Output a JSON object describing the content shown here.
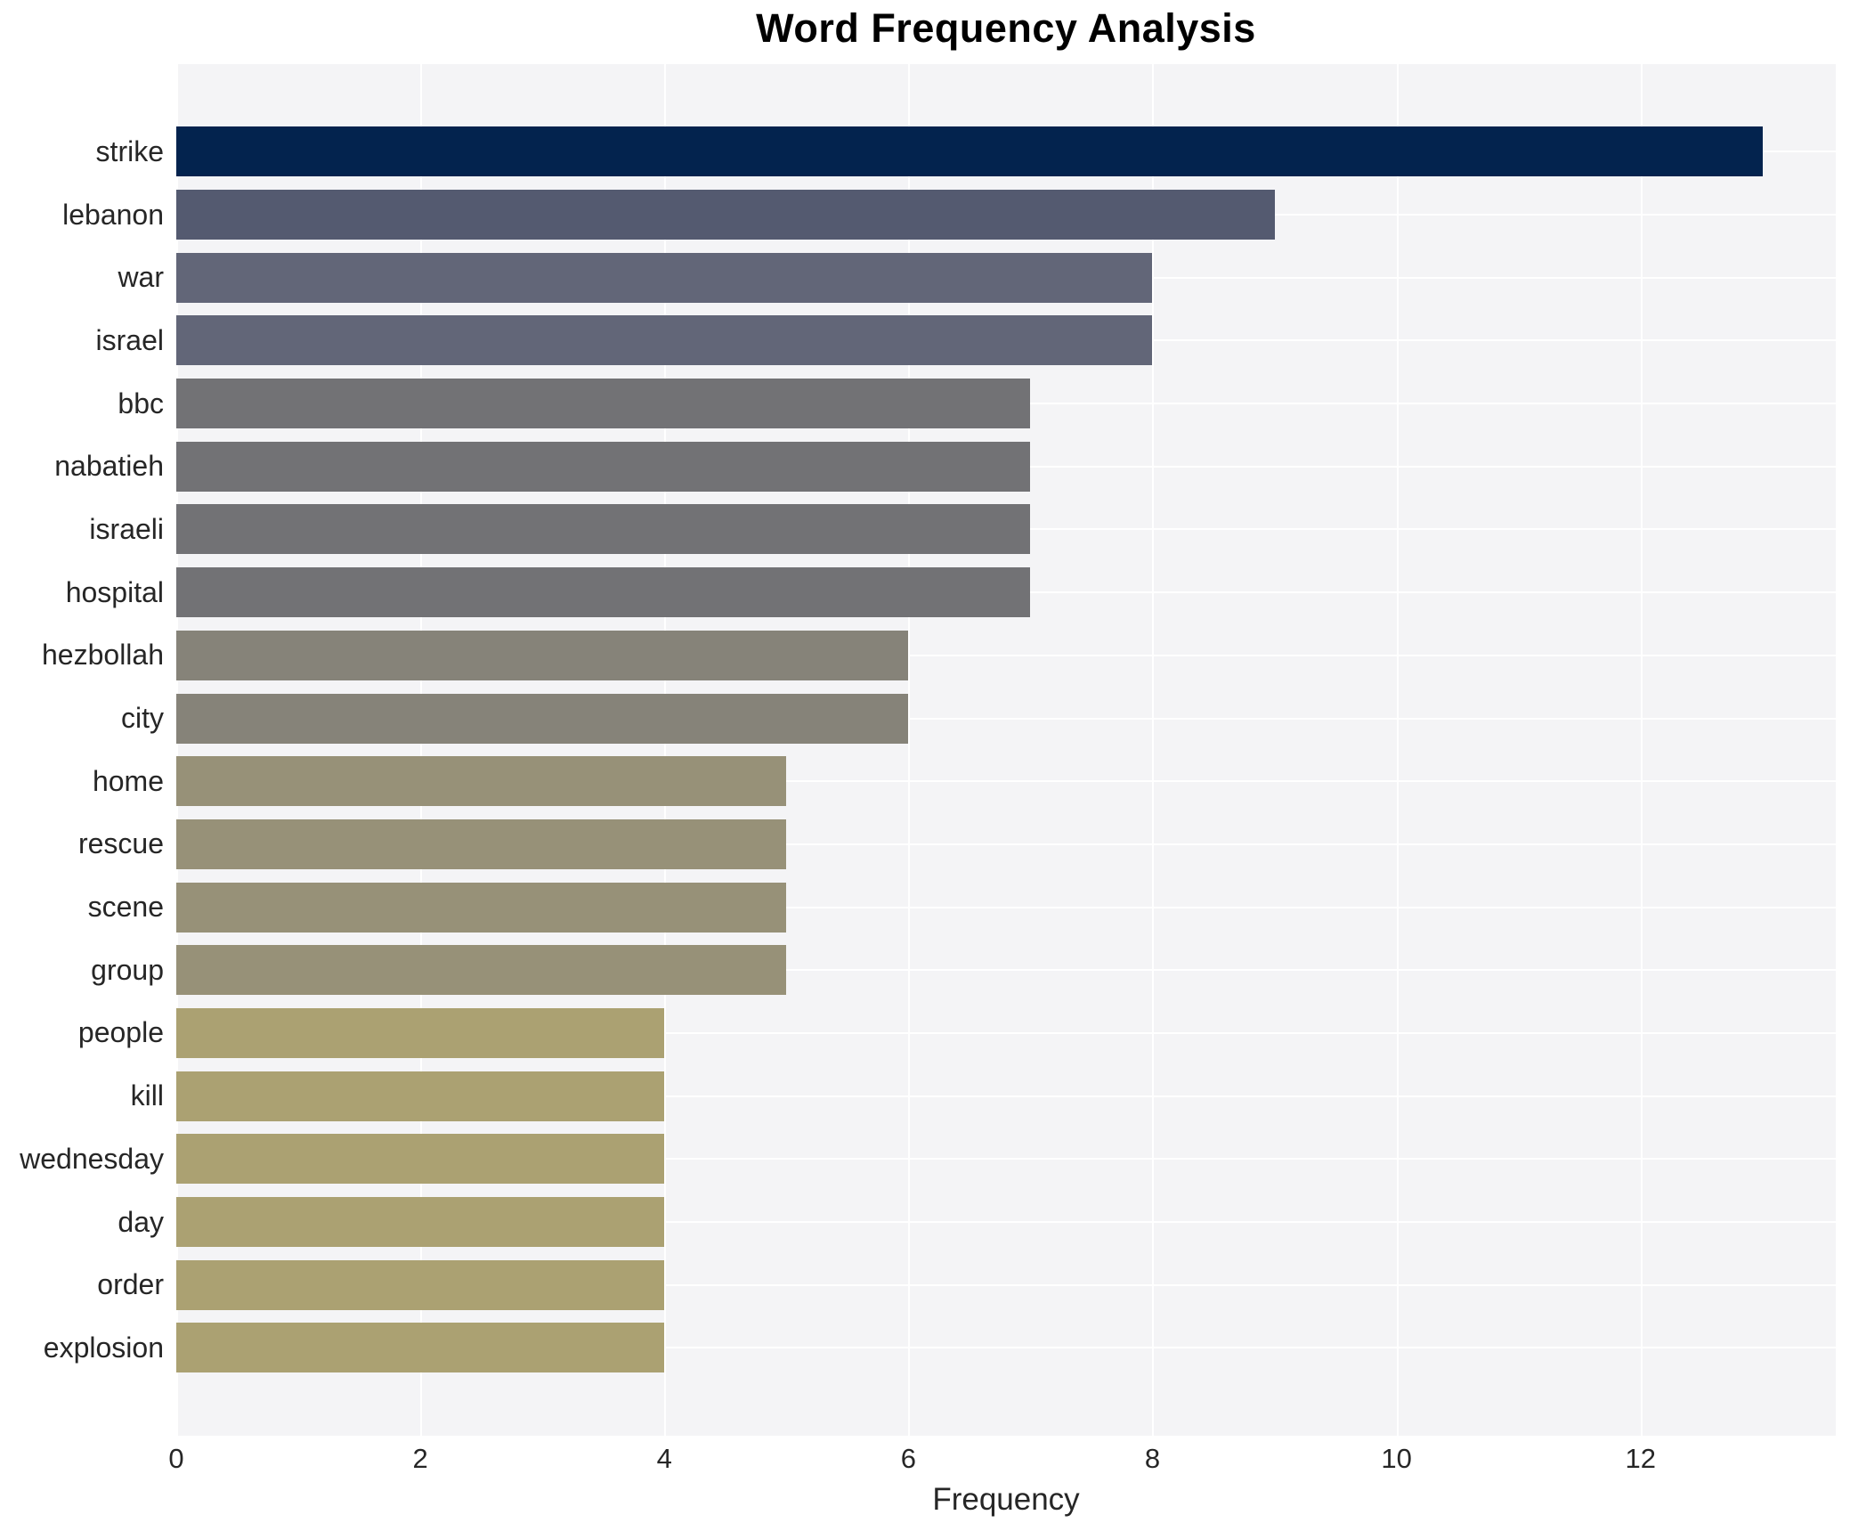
{
  "chart_data": {
    "type": "bar",
    "orientation": "horizontal",
    "title": "Word Frequency Analysis",
    "xlabel": "Frequency",
    "ylabel": "",
    "categories": [
      "strike",
      "lebanon",
      "war",
      "israel",
      "bbc",
      "nabatieh",
      "israeli",
      "hospital",
      "hezbollah",
      "city",
      "home",
      "rescue",
      "scene",
      "group",
      "people",
      "kill",
      "wednesday",
      "day",
      "order",
      "explosion"
    ],
    "values": [
      13,
      9,
      8,
      8,
      7,
      7,
      7,
      7,
      6,
      6,
      5,
      5,
      5,
      5,
      4,
      4,
      4,
      4,
      4,
      4
    ],
    "bar_colors": [
      "#03234e",
      "#545a70",
      "#626678",
      "#626678",
      "#727275",
      "#727275",
      "#727275",
      "#727275",
      "#868379",
      "#868379",
      "#979178",
      "#979178",
      "#979178",
      "#979178",
      "#aba172",
      "#aba172",
      "#aba172",
      "#aba172",
      "#aba172",
      "#aba172"
    ],
    "x_ticks": [
      0,
      2,
      4,
      6,
      8,
      10,
      12
    ],
    "xlim": [
      0,
      13.6
    ],
    "grid": true,
    "legend_position": "none",
    "panel_bg": "#f4f4f6",
    "grid_color": "#ffffff"
  }
}
